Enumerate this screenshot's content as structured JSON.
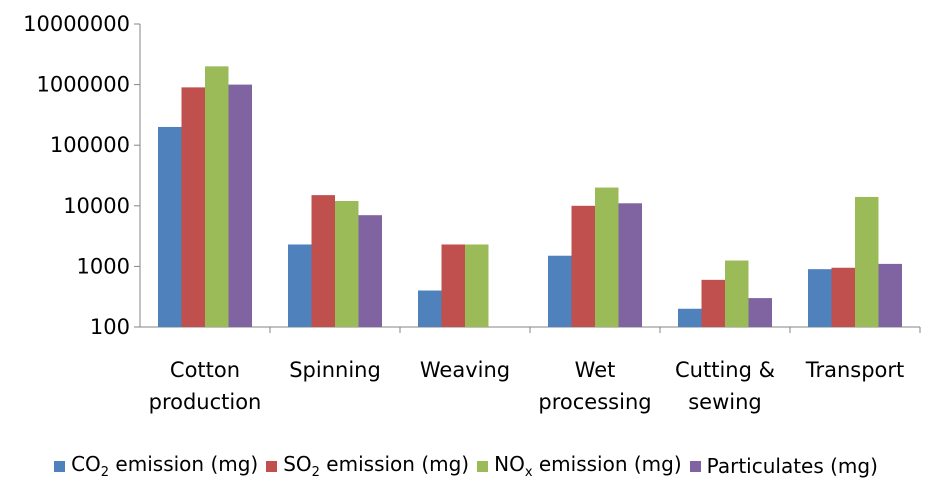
{
  "chart_data": {
    "type": "bar",
    "title": "",
    "xlabel": "",
    "ylabel": "",
    "y_scale": "log",
    "ylim": [
      100,
      10000000
    ],
    "y_ticks": [
      "100",
      "1000",
      "10000",
      "100000",
      "1000000",
      "10000000"
    ],
    "grid": false,
    "legend_position": "bottom",
    "categories": [
      [
        "Cotton",
        "production"
      ],
      [
        "Spinning"
      ],
      [
        "Weaving"
      ],
      [
        "Wet",
        "processing"
      ],
      [
        "Cutting &",
        "sewing"
      ],
      [
        "Transport"
      ]
    ],
    "series": [
      {
        "name": "CO",
        "sub": "2",
        "suffix": " emission (mg)",
        "color": "#4f81bd",
        "values": [
          200000,
          2300,
          400,
          1500,
          200,
          900
        ]
      },
      {
        "name": "SO",
        "sub": "2",
        "suffix": "  emission (mg)",
        "color": "#c0504d",
        "values": [
          900000,
          15000,
          2300,
          10000,
          600,
          950
        ]
      },
      {
        "name": "NO",
        "sub": "x",
        "suffix": " emission (mg)",
        "color": "#9bbb59",
        "values": [
          2000000,
          12000,
          2300,
          20000,
          1250,
          14000
        ]
      },
      {
        "name": "Particulates (mg)",
        "sub": "",
        "suffix": "",
        "color": "#8064a2",
        "values": [
          1000000,
          7000,
          null,
          11000,
          300,
          1100
        ]
      }
    ]
  }
}
